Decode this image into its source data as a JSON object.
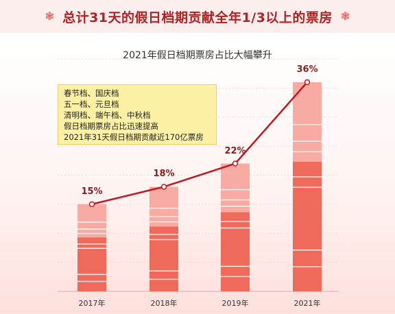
{
  "header": {
    "title": "总计31天的假日档期贡献全年1/3以上的票房",
    "left_icon": "flower-icon",
    "right_icon": "flower-icon"
  },
  "chart_data": {
    "type": "bar",
    "title": "2021年假日档期票房占比大幅攀升",
    "categories": [
      "2017年",
      "2018年",
      "2019年",
      "2021年"
    ],
    "values": [
      15,
      18,
      22,
      36
    ],
    "value_labels": [
      "15%",
      "18%",
      "22%",
      "36%"
    ],
    "ylim": [
      0,
      40
    ],
    "line_overlay": true,
    "annotation_lines": [
      "春节档、国庆档",
      "五一档、元旦档",
      "清明档、端午档、中秋档",
      "假日档期票房占比迅速提高",
      "2021年31天假日档期贡献近170亿票房"
    ],
    "colors": {
      "bar_dark": "#f06a5c",
      "bar_light": "#f8aba3",
      "line": "#c8141c",
      "label": "#8b1c1c"
    }
  }
}
